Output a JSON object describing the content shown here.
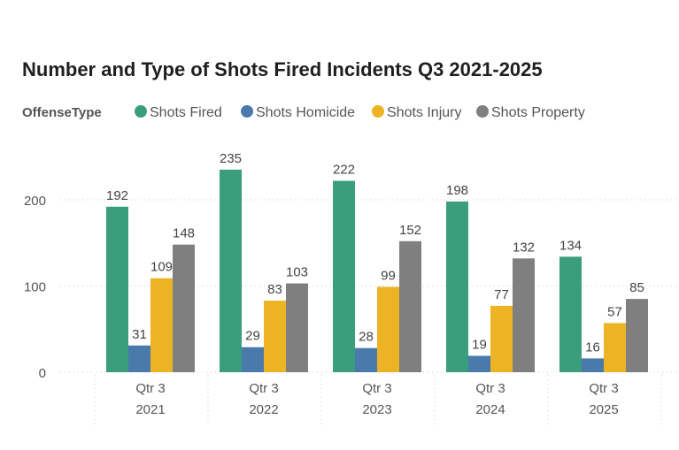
{
  "chart_data": {
    "type": "bar",
    "title": "Number and Type of Shots Fired Incidents Q3 2021-2025",
    "legend_title": "OffenseType",
    "legend_position": "top-left",
    "categories": [
      [
        "Qtr 3",
        "2021"
      ],
      [
        "Qtr 3",
        "2022"
      ],
      [
        "Qtr 3",
        "2023"
      ],
      [
        "Qtr 3",
        "2024"
      ],
      [
        "Qtr 3",
        "2025"
      ]
    ],
    "series": [
      {
        "name": "Shots Fired",
        "color": "#3a9e7c",
        "values": [
          192,
          235,
          222,
          198,
          134
        ]
      },
      {
        "name": "Shots Homicide",
        "color": "#4a7aab",
        "values": [
          31,
          29,
          28,
          19,
          16
        ]
      },
      {
        "name": "Shots Injury",
        "color": "#ecb324",
        "values": [
          109,
          83,
          99,
          77,
          57
        ]
      },
      {
        "name": "Shots Property",
        "color": "#7f7f7f",
        "values": [
          148,
          103,
          152,
          132,
          85
        ]
      }
    ],
    "yticks": [
      0,
      100,
      200
    ],
    "ylim": [
      0,
      250
    ],
    "grid": true,
    "xlabel": "",
    "ylabel": ""
  }
}
